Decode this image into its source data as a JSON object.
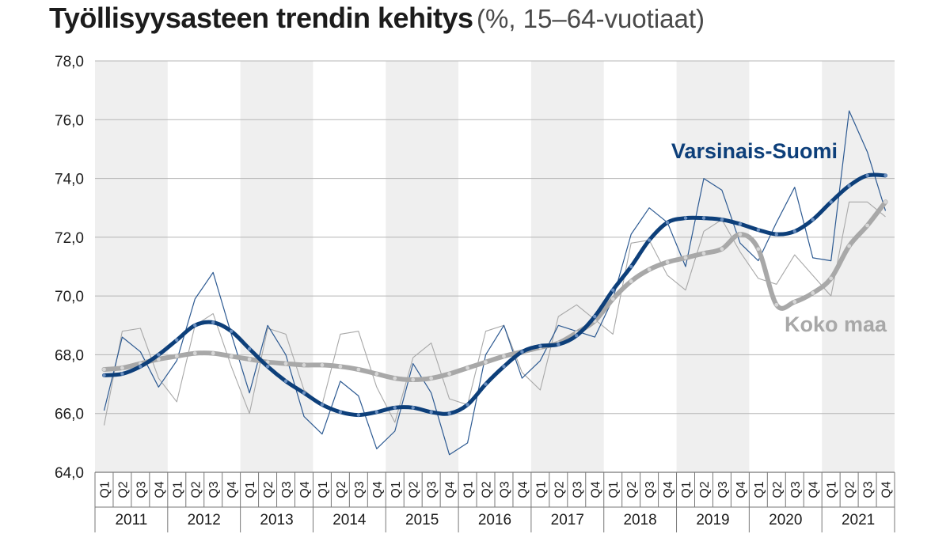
{
  "chart_data": {
    "type": "line",
    "title": "Työllisyysasteen trendin kehitys",
    "subtitle": "(%, 15–64-vuotiaat)",
    "xlabel": "",
    "ylabel": "",
    "ylim": [
      64,
      78
    ],
    "yticks": [
      "64,0",
      "66,0",
      "68,0",
      "70,0",
      "72,0",
      "74,0",
      "76,0",
      "78,0"
    ],
    "quarters": [
      "Q1",
      "Q2",
      "Q3",
      "Q4"
    ],
    "years": [
      "2011",
      "2012",
      "2013",
      "2014",
      "2015",
      "2016",
      "2017",
      "2018",
      "2019",
      "2020",
      "2021"
    ],
    "grid": true,
    "alternating_year_shading": true,
    "series": [
      {
        "name": "Varsinais-Suomi",
        "role": "trend",
        "color": "#0d3f7a",
        "values": [
          67.3,
          67.35,
          67.6,
          68.0,
          68.5,
          69.0,
          69.1,
          68.8,
          68.2,
          67.6,
          67.1,
          66.7,
          66.3,
          66.05,
          65.95,
          66.05,
          66.2,
          66.2,
          66.05,
          66.0,
          66.3,
          67.0,
          67.6,
          68.1,
          68.3,
          68.35,
          68.65,
          69.3,
          70.2,
          71.0,
          71.9,
          72.5,
          72.65,
          72.65,
          72.6,
          72.45,
          72.25,
          72.1,
          72.2,
          72.6,
          73.2,
          73.75,
          74.1,
          74.1
        ]
      },
      {
        "name": "Varsinais-Suomi (original)",
        "role": "original",
        "color": "#2d5a92",
        "values": [
          66.1,
          68.6,
          68.1,
          66.9,
          67.8,
          69.9,
          70.8,
          68.7,
          66.7,
          69.0,
          68.0,
          65.9,
          65.3,
          67.1,
          66.6,
          64.8,
          65.4,
          67.7,
          66.7,
          64.6,
          65.0,
          68.0,
          69.0,
          67.2,
          67.8,
          69.0,
          68.8,
          68.6,
          69.9,
          72.1,
          73.0,
          72.5,
          71.0,
          74.0,
          73.6,
          71.8,
          71.2,
          72.5,
          73.7,
          71.3,
          71.2,
          76.3,
          74.9,
          72.9
        ]
      },
      {
        "name": "Koko maa",
        "role": "trend",
        "color": "#a8a8a8",
        "values": [
          67.5,
          67.55,
          67.7,
          67.85,
          67.95,
          68.05,
          68.05,
          67.95,
          67.85,
          67.75,
          67.7,
          67.65,
          67.65,
          67.6,
          67.5,
          67.35,
          67.2,
          67.15,
          67.2,
          67.35,
          67.55,
          67.75,
          67.95,
          68.1,
          68.25,
          68.4,
          68.75,
          69.15,
          69.9,
          70.5,
          70.9,
          71.15,
          71.3,
          71.45,
          71.6,
          72.1,
          71.6,
          69.7,
          69.8,
          70.1,
          70.6,
          71.7,
          72.4,
          73.2
        ]
      },
      {
        "name": "Koko maa (original)",
        "role": "original",
        "color": "#a8a8a8",
        "values": [
          65.6,
          68.8,
          68.9,
          67.2,
          66.4,
          69.0,
          69.4,
          67.6,
          66.0,
          68.9,
          68.7,
          66.8,
          66.3,
          68.7,
          68.8,
          66.9,
          65.7,
          67.9,
          68.4,
          66.5,
          66.3,
          68.8,
          69.0,
          67.4,
          66.8,
          69.3,
          69.7,
          69.2,
          68.7,
          71.8,
          71.9,
          70.7,
          70.2,
          72.2,
          72.6,
          71.5,
          70.6,
          70.4,
          71.4,
          70.7,
          70.0,
          73.2,
          73.2,
          72.7
        ]
      }
    ]
  }
}
